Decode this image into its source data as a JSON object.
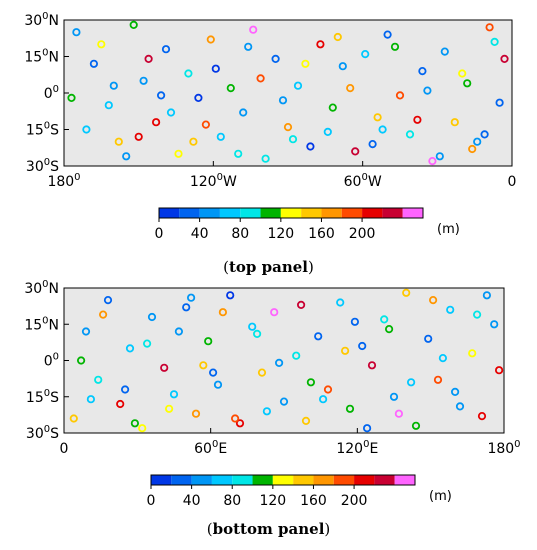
{
  "colorbar": {
    "colors": [
      "#0037e6",
      "#0064f0",
      "#0096f5",
      "#00c8ff",
      "#00e6e6",
      "#00b400",
      "#ffff00",
      "#ffc800",
      "#ff9600",
      "#ff4b00",
      "#e60000",
      "#c80032",
      "#ff64ff"
    ],
    "tick_labels": [
      "0",
      "40",
      "80",
      "120",
      "160",
      "200"
    ],
    "unit": "(m)"
  },
  "captions": {
    "top": {
      "open": "(",
      "bold": "top panel",
      "close": ")"
    },
    "bottom": {
      "open": "(",
      "bold": "bottom panel",
      "close": ")"
    }
  },
  "chart_data": [
    {
      "type": "scatter",
      "title": "top panel",
      "xlabel": "",
      "ylabel": "",
      "xlim": [
        -180,
        0
      ],
      "ylim": [
        -30,
        30
      ],
      "x_ticks": [
        {
          "value": -180,
          "base": "180",
          "sup": "0",
          "suffix": ""
        },
        {
          "value": -120,
          "base": "120",
          "sup": "0",
          "suffix": "W"
        },
        {
          "value": -60,
          "base": "60",
          "sup": "0",
          "suffix": "W"
        },
        {
          "value": 0,
          "base": "0",
          "sup": "",
          "suffix": ""
        }
      ],
      "y_ticks": [
        {
          "value": 30,
          "base": "30",
          "sup": "0",
          "suffix": "N"
        },
        {
          "value": 15,
          "base": "15",
          "sup": "0",
          "suffix": "N"
        },
        {
          "value": 0,
          "base": "0",
          "sup": "0",
          "suffix": ""
        },
        {
          "value": -15,
          "base": "15",
          "sup": "0",
          "suffix": "S"
        },
        {
          "value": -30,
          "base": "30",
          "sup": "0",
          "suffix": "S"
        }
      ],
      "marker": "open-circle",
      "color_scale": {
        "min": 0,
        "max": 220,
        "unit": "m"
      },
      "points": [
        [
          -175,
          25,
          40
        ],
        [
          -168,
          12,
          20
        ],
        [
          -162,
          -5,
          60
        ],
        [
          -158,
          -20,
          130
        ],
        [
          -152,
          28,
          90
        ],
        [
          -148,
          5,
          45
        ],
        [
          -143,
          -12,
          180
        ],
        [
          -139,
          18,
          30
        ],
        [
          -134,
          -25,
          110
        ],
        [
          -130,
          8,
          70
        ],
        [
          -126,
          -2,
          10
        ],
        [
          -121,
          22,
          150
        ],
        [
          -117,
          -18,
          55
        ],
        [
          -113,
          2,
          95
        ],
        [
          -108,
          -8,
          35
        ],
        [
          -104,
          26,
          205
        ],
        [
          -99,
          -27,
          80
        ],
        [
          -95,
          14,
          25
        ],
        [
          -90,
          -14,
          140
        ],
        [
          -86,
          3,
          60
        ],
        [
          -81,
          -22,
          15
        ],
        [
          -77,
          20,
          170
        ],
        [
          -72,
          -6,
          100
        ],
        [
          -68,
          11,
          40
        ],
        [
          -63,
          -24,
          190
        ],
        [
          -59,
          16,
          65
        ],
        [
          -54,
          -10,
          120
        ],
        [
          -50,
          24,
          30
        ],
        [
          -45,
          -1,
          160
        ],
        [
          -41,
          -17,
          75
        ],
        [
          -36,
          9,
          20
        ],
        [
          -32,
          -28,
          210
        ],
        [
          -27,
          17,
          50
        ],
        [
          -23,
          -12,
          135
        ],
        [
          -18,
          4,
          85
        ],
        [
          -14,
          -20,
          45
        ],
        [
          -9,
          27,
          155
        ],
        [
          -5,
          -4,
          25
        ],
        [
          -171,
          -15,
          65
        ],
        [
          -165,
          20,
          105
        ],
        [
          -155,
          -26,
          35
        ],
        [
          -146,
          14,
          195
        ],
        [
          -137,
          -8,
          55
        ],
        [
          -128,
          -20,
          125
        ],
        [
          -119,
          10,
          15
        ],
        [
          -110,
          -25,
          75
        ],
        [
          -101,
          6,
          165
        ],
        [
          -92,
          -3,
          40
        ],
        [
          -83,
          12,
          110
        ],
        [
          -74,
          -16,
          60
        ],
        [
          -65,
          2,
          145
        ],
        [
          -56,
          -21,
          20
        ],
        [
          -47,
          19,
          90
        ],
        [
          -38,
          -11,
          175
        ],
        [
          -29,
          -26,
          50
        ],
        [
          -20,
          8,
          115
        ],
        [
          -11,
          -17,
          30
        ],
        [
          -3,
          14,
          200
        ],
        [
          -177,
          -2,
          95
        ],
        [
          -160,
          3,
          50
        ],
        [
          -141,
          -1,
          20
        ],
        [
          -123,
          -13,
          165
        ],
        [
          -106,
          19,
          45
        ],
        [
          -88,
          -19,
          80
        ],
        [
          -70,
          23,
          130
        ],
        [
          -52,
          -15,
          60
        ],
        [
          -34,
          1,
          35
        ],
        [
          -16,
          -23,
          150
        ],
        [
          -7,
          21,
          70
        ],
        [
          -150,
          -18,
          185
        ]
      ]
    },
    {
      "type": "scatter",
      "title": "bottom panel",
      "xlabel": "",
      "ylabel": "",
      "xlim": [
        0,
        180
      ],
      "ylim": [
        -30,
        30
      ],
      "x_ticks": [
        {
          "value": 0,
          "base": "0",
          "sup": "",
          "suffix": ""
        },
        {
          "value": 60,
          "base": "60",
          "sup": "0",
          "suffix": "E"
        },
        {
          "value": 120,
          "base": "120",
          "sup": "0",
          "suffix": "E"
        },
        {
          "value": 180,
          "base": "180",
          "sup": "0",
          "suffix": ""
        }
      ],
      "y_ticks": [
        {
          "value": 30,
          "base": "30",
          "sup": "0",
          "suffix": "N"
        },
        {
          "value": 15,
          "base": "15",
          "sup": "0",
          "suffix": "N"
        },
        {
          "value": 0,
          "base": "0",
          "sup": "0",
          "suffix": ""
        },
        {
          "value": -15,
          "base": "15",
          "sup": "0",
          "suffix": "S"
        },
        {
          "value": -30,
          "base": "30",
          "sup": "0",
          "suffix": "S"
        }
      ],
      "marker": "open-circle",
      "color_scale": {
        "min": 0,
        "max": 220,
        "unit": "m"
      },
      "points": [
        [
          4,
          -24,
          130
        ],
        [
          9,
          12,
          40
        ],
        [
          14,
          -8,
          80
        ],
        [
          18,
          25,
          20
        ],
        [
          23,
          -18,
          170
        ],
        [
          27,
          5,
          55
        ],
        [
          32,
          -28,
          110
        ],
        [
          36,
          18,
          35
        ],
        [
          41,
          -3,
          200
        ],
        [
          45,
          -14,
          65
        ],
        [
          50,
          22,
          25
        ],
        [
          54,
          -22,
          145
        ],
        [
          59,
          8,
          90
        ],
        [
          63,
          -10,
          50
        ],
        [
          68,
          27,
          15
        ],
        [
          72,
          -26,
          185
        ],
        [
          77,
          14,
          60
        ],
        [
          81,
          -5,
          120
        ],
        [
          86,
          20,
          210
        ],
        [
          90,
          -17,
          45
        ],
        [
          95,
          2,
          75
        ],
        [
          99,
          -25,
          135
        ],
        [
          104,
          10,
          30
        ],
        [
          108,
          -12,
          160
        ],
        [
          113,
          24,
          55
        ],
        [
          117,
          -20,
          100
        ],
        [
          122,
          6,
          20
        ],
        [
          126,
          -2,
          190
        ],
        [
          131,
          17,
          70
        ],
        [
          135,
          -15,
          40
        ],
        [
          140,
          28,
          125
        ],
        [
          144,
          -27,
          85
        ],
        [
          149,
          9,
          25
        ],
        [
          153,
          -8,
          155
        ],
        [
          158,
          21,
          60
        ],
        [
          162,
          -19,
          35
        ],
        [
          167,
          3,
          105
        ],
        [
          171,
          -23,
          175
        ],
        [
          176,
          15,
          50
        ],
        [
          7,
          0,
          95
        ],
        [
          16,
          19,
          150
        ],
        [
          25,
          -12,
          30
        ],
        [
          34,
          7,
          70
        ],
        [
          43,
          -20,
          115
        ],
        [
          52,
          26,
          45
        ],
        [
          61,
          -5,
          25
        ],
        [
          70,
          -24,
          165
        ],
        [
          79,
          11,
          80
        ],
        [
          88,
          -1,
          40
        ],
        [
          97,
          23,
          195
        ],
        [
          106,
          -16,
          60
        ],
        [
          115,
          4,
          130
        ],
        [
          124,
          -28,
          20
        ],
        [
          133,
          13,
          90
        ],
        [
          142,
          -9,
          55
        ],
        [
          151,
          25,
          145
        ],
        [
          160,
          -13,
          35
        ],
        [
          169,
          19,
          70
        ],
        [
          178,
          -4,
          180
        ],
        [
          11,
          -16,
          60
        ],
        [
          29,
          -26,
          100
        ],
        [
          47,
          12,
          35
        ],
        [
          65,
          20,
          140
        ],
        [
          83,
          -21,
          55
        ],
        [
          101,
          -9,
          85
        ],
        [
          119,
          16,
          30
        ],
        [
          137,
          -22,
          205
        ],
        [
          155,
          1,
          65
        ],
        [
          173,
          27,
          40
        ],
        [
          57,
          -2,
          120
        ]
      ]
    }
  ]
}
